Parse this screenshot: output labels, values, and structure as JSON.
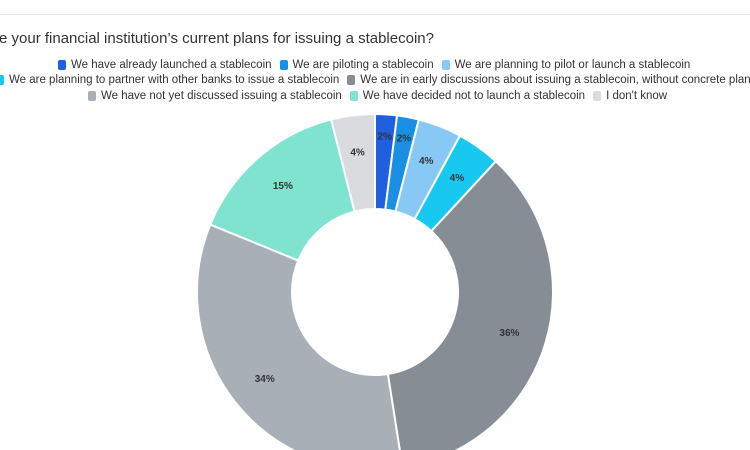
{
  "chart_data": {
    "type": "pie",
    "title": "re your financial institution’s current plans for issuing a stablecoin?",
    "categories": [
      "We have already launched a stablecoin",
      "We are piloting a stablecoin",
      "We are planning to pilot or launch a stablecoin",
      "We are planning to partner with other banks to issue a stablecoin",
      "We are in early discussions about issuing a stablecoin, without concrete plans",
      "We have not yet discussed issuing a stablecoin",
      "We have decided not to launch a stablecoin",
      "I don't know"
    ],
    "values": [
      2,
      2,
      4,
      4,
      36,
      34,
      15,
      4
    ],
    "value_labels": [
      "2%",
      "2%",
      "4%",
      "4%",
      "36%",
      "34%",
      "15%",
      "4%"
    ],
    "colors": [
      "#1f5fe0",
      "#1a8fe3",
      "#87c8f5",
      "#19c8f0",
      "#868d95",
      "#a9afb6",
      "#7fe3cf",
      "#d9dbde"
    ],
    "legend_position": "top",
    "donut": true
  }
}
